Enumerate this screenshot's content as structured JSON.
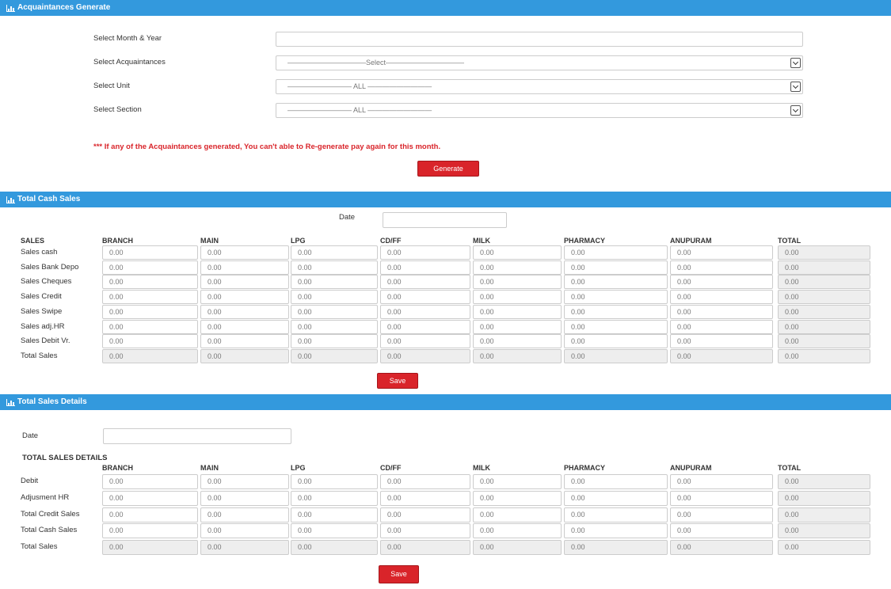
{
  "acquaintances": {
    "title": "Acquaintances Generate",
    "fields": [
      {
        "label": "Select Month & Year"
      },
      {
        "label": "Select Acquaintances",
        "value": "———————————Select———————————"
      },
      {
        "label": "Select Unit",
        "value": "————————— ALL —————————"
      },
      {
        "label": "Select Section",
        "value": "————————— ALL —————————"
      }
    ],
    "warning": "*** If any of the Acquaintances generated, You can't able to Re-generate pay again for this month.",
    "button": "Generate"
  },
  "cash_sales": {
    "title": "Total Cash Sales",
    "date_label": "Date",
    "columns": [
      "SALES",
      "BRANCH",
      "MAIN",
      "LPG",
      "CD/FF",
      "MILK",
      "PHARMACY",
      "ANUPURAM",
      "TOTAL"
    ],
    "rows": [
      {
        "label": "Sales cash",
        "cells": [
          "0.00",
          "0.00",
          "0.00",
          "0.00",
          "0.00",
          "0.00",
          "0.00",
          "0.00"
        ]
      },
      {
        "label": "Sales Bank Depo",
        "cells": [
          "0.00",
          "0.00",
          "0.00",
          "0.00",
          "0.00",
          "0.00",
          "0.00",
          "0.00"
        ]
      },
      {
        "label": "Sales Cheques",
        "cells": [
          "0.00",
          "0.00",
          "0.00",
          "0.00",
          "0.00",
          "0.00",
          "0.00",
          "0.00"
        ]
      },
      {
        "label": "Sales Credit",
        "cells": [
          "0.00",
          "0.00",
          "0.00",
          "0.00",
          "0.00",
          "0.00",
          "0.00",
          "0.00"
        ]
      },
      {
        "label": "Sales Swipe",
        "cells": [
          "0.00",
          "0.00",
          "0.00",
          "0.00",
          "0.00",
          "0.00",
          "0.00",
          "0.00"
        ]
      },
      {
        "label": "Sales adj.HR",
        "cells": [
          "0.00",
          "0.00",
          "0.00",
          "0.00",
          "0.00",
          "0.00",
          "0.00",
          "0.00"
        ]
      },
      {
        "label": "Sales Debit Vr.",
        "cells": [
          "0.00",
          "0.00",
          "0.00",
          "0.00",
          "0.00",
          "0.00",
          "0.00",
          "0.00"
        ]
      },
      {
        "label": "Total Sales",
        "cells": [
          "0.00",
          "0.00",
          "0.00",
          "0.00",
          "0.00",
          "0.00",
          "0.00",
          "0.00"
        ]
      }
    ],
    "button": "Save"
  },
  "sales_details": {
    "title": "Total Sales Details",
    "date_label": "Date",
    "heading": "TOTAL SALES DETAILS",
    "columns": [
      "BRANCH",
      "MAIN",
      "LPG",
      "CD/FF",
      "MILK",
      "PHARMACY",
      "ANUPURAM",
      "TOTAL"
    ],
    "rows": [
      {
        "label": "Debit",
        "cells": [
          "0.00",
          "0.00",
          "0.00",
          "0.00",
          "0.00",
          "0.00",
          "0.00",
          "0.00"
        ]
      },
      {
        "label": "Adjusment HR",
        "cells": [
          "0.00",
          "0.00",
          "0.00",
          "0.00",
          "0.00",
          "0.00",
          "0.00",
          "0.00"
        ]
      },
      {
        "label": "Total Credit Sales",
        "cells": [
          "0.00",
          "0.00",
          "0.00",
          "0.00",
          "0.00",
          "0.00",
          "0.00",
          "0.00"
        ]
      },
      {
        "label": "Total Cash Sales",
        "cells": [
          "0.00",
          "0.00",
          "0.00",
          "0.00",
          "0.00",
          "0.00",
          "0.00",
          "0.00"
        ]
      },
      {
        "label": "Total Sales",
        "cells": [
          "0.00",
          "0.00",
          "0.00",
          "0.00",
          "0.00",
          "0.00",
          "0.00",
          "0.00"
        ]
      }
    ],
    "button": "Save"
  }
}
